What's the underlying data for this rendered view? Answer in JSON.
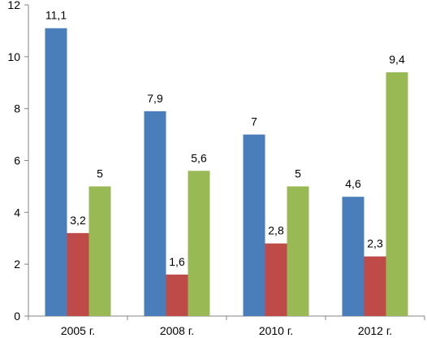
{
  "chart_data": {
    "type": "bar",
    "categories": [
      "2005 г.",
      "2008 г.",
      "2010 г.",
      "2012 г."
    ],
    "series": [
      {
        "values": [
          11.1,
          7.9,
          7,
          4.6
        ],
        "labels": [
          "11,1",
          "7,9",
          "7",
          "4,6"
        ],
        "color": "#4a7ebb"
      },
      {
        "values": [
          3.2,
          1.6,
          2.8,
          2.3
        ],
        "labels": [
          "3,2",
          "1,6",
          "2,8",
          "2,3"
        ],
        "color": "#be4b48"
      },
      {
        "values": [
          5,
          5.6,
          5,
          9.4
        ],
        "labels": [
          "5",
          "5,6",
          "5",
          "9,4"
        ],
        "color": "#98b954"
      }
    ],
    "ylim": [
      0,
      12
    ],
    "yticks": [
      "0",
      "2",
      "4",
      "6",
      "8",
      "10",
      "12"
    ],
    "grid": false,
    "legend": "none"
  }
}
